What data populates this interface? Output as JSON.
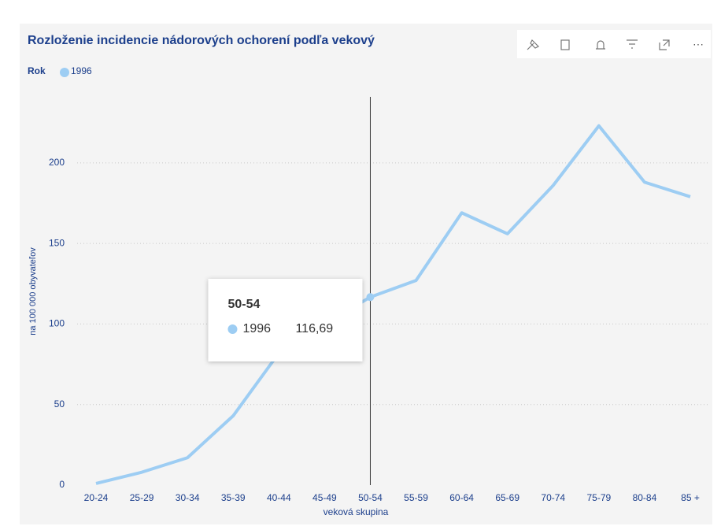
{
  "chart_data": {
    "type": "line",
    "title": "Rozloženie incidencie nádorových ochorení podľa vekový",
    "legend_title": "Rok",
    "x_label": "veková skupina",
    "y_label": "na 100 000 obyvateľov",
    "categories": [
      "20-24",
      "25-29",
      "30-34",
      "35-39",
      "40-44",
      "45-49",
      "50-54",
      "55-59",
      "60-64",
      "65-69",
      "70-74",
      "75-79",
      "80-84",
      "85 +"
    ],
    "series": [
      {
        "name": "1996",
        "color": "#9dcdf3",
        "values": [
          1,
          8,
          17,
          43,
          82,
          100,
          116.69,
          127,
          169,
          156,
          186,
          223,
          188,
          179
        ],
        "value_labels": [
          null,
          null,
          null,
          null,
          null,
          null,
          "116,69",
          null,
          null,
          null,
          null,
          null,
          null,
          null
        ]
      }
    ],
    "ylim": [
      0,
      240
    ],
    "yticks": [
      0,
      50,
      100,
      150,
      200
    ],
    "grid": true
  }
}
